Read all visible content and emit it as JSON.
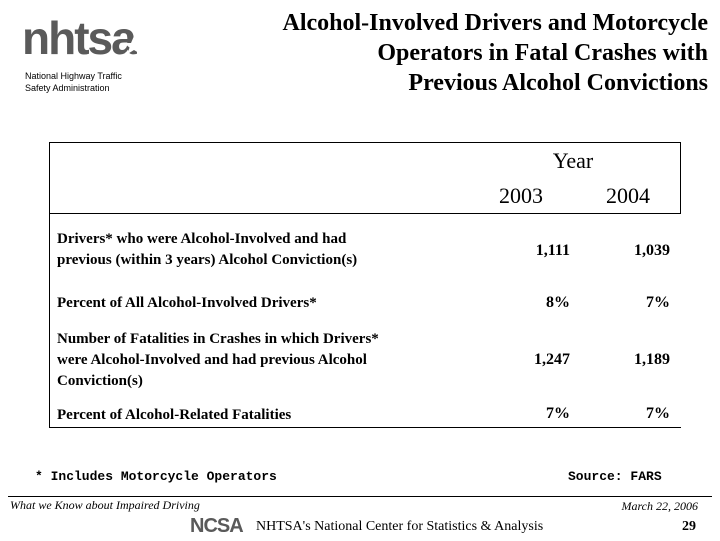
{
  "header": {
    "logo_text": "nhtsa",
    "agency_lines": [
      "National Highway Traffic",
      "Safety Administration"
    ],
    "title_lines": [
      "Alcohol-Involved Drivers and Motorcycle",
      "Operators in Fatal Crashes with",
      "Previous Alcohol Convictions"
    ]
  },
  "table": {
    "group_header": "Year",
    "columns": [
      "2003",
      "2004"
    ],
    "rows": [
      {
        "label_lines": [
          "Drivers* who were Alcohol-Involved and had",
          "previous (within 3 years) Alcohol Conviction(s)"
        ],
        "values": [
          "1,111",
          "1,039"
        ]
      },
      {
        "label_lines": [
          "Percent of All Alcohol-Involved Drivers*"
        ],
        "values": [
          "8%",
          "7%"
        ]
      },
      {
        "label_lines": [
          "Number of Fatalities in Crashes in which Drivers*",
          "were Alcohol-Involved and had previous Alcohol",
          "Conviction(s)"
        ],
        "values": [
          "1,247",
          "1,189"
        ]
      },
      {
        "label_lines": [
          "Percent of Alcohol-Related Fatalities"
        ],
        "values": [
          "7%",
          "7%"
        ]
      }
    ]
  },
  "footnote": "* Includes Motorcycle Operators",
  "source": "Source: FARS",
  "footer": {
    "series_title": "What we Know about Impaired Driving",
    "date": "March 22, 2006",
    "ncsa_logo_text": "NCSA",
    "center_name": "NHTSA's National Center for Statistics & Analysis",
    "page_number": "29"
  },
  "colors": {
    "logo_gray": "#5a5a5a"
  }
}
